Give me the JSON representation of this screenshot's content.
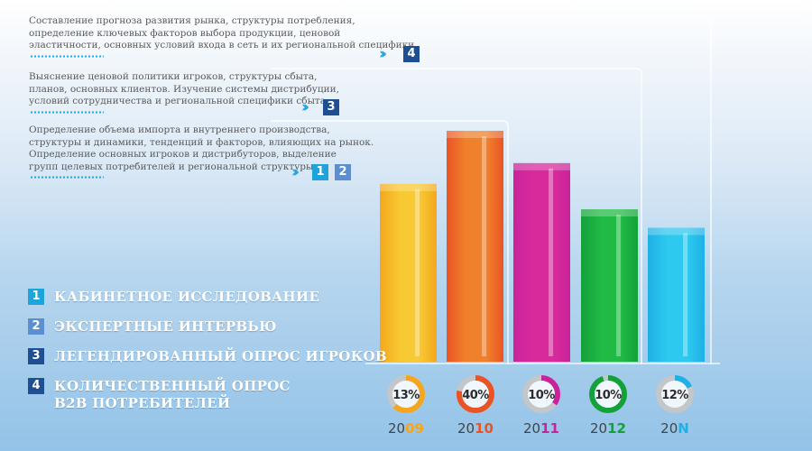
{
  "stages": [
    {
      "text_lines": [
        "Составление прогноза развития рынка, структуры потребления,",
        "определение ключевых факторов выбора продукции, ценовой",
        "эластичности, основных условий входа в сеть и их региональной специфики."
      ],
      "markers": [
        "4"
      ]
    },
    {
      "text_lines": [
        "Выяснение ценовой политики игроков, структуры сбыта,",
        "планов, основных клиентов.  Изучение системы дистрибуции,",
        "условий сотрудничества и  региональной специфики сбыта."
      ],
      "markers": [
        "3"
      ]
    },
    {
      "text_lines": [
        "Определение объема импорта и внутреннего производства,",
        "структуры и динамики, тенденций и факторов, влияющих на рынок.",
        "Определение основных игроков и дистрибуторов, выделение",
        "групп целевых потребителей и региональной структуры."
      ],
      "markers": [
        "1",
        "2"
      ]
    }
  ],
  "legend": [
    {
      "num": "1",
      "label": "КАБИНЕТНОЕ ИССЛЕДОВАНИЕ",
      "color": "#1ea3db"
    },
    {
      "num": "2",
      "label": "ЭКСПЕРТНЫЕ ИНТЕРВЬЮ",
      "color": "#5b8fd0"
    },
    {
      "num": "3",
      "label": "ЛЕГЕНДИРОВАННЫЙ ОПРОС ИГРОКОВ",
      "color": "#1f4f93"
    },
    {
      "num": "4",
      "label": "КОЛИЧЕСТВЕННЫЙ ОПРОС B2B ПОТРЕБИТЕЛЕЙ",
      "color": "#1f4f93"
    }
  ],
  "chart_data": {
    "type": "bar",
    "categories": [
      "2009",
      "2010",
      "2011",
      "2012",
      "20N"
    ],
    "year_prefix": "20",
    "year_suffix": [
      "09",
      "10",
      "11",
      "12",
      "N"
    ],
    "values": [
      13,
      40,
      10,
      10,
      12
    ],
    "labels": [
      "13%",
      "40%",
      "10%",
      "10%",
      "12%"
    ],
    "bar_relative_heights": [
      0.77,
      1.0,
      0.86,
      0.66,
      0.58
    ],
    "bar_colors": [
      "#f7c933",
      "#f0812c",
      "#d92a9c",
      "#20ba45",
      "#2dc9ef"
    ],
    "accent_colors": [
      "#f4a71d",
      "#ea5424",
      "#c9239b",
      "#13a13a",
      "#1fb0e5"
    ],
    "ring_bg": "#c5c6c8",
    "title": "",
    "xlabel": "",
    "ylabel": ""
  }
}
